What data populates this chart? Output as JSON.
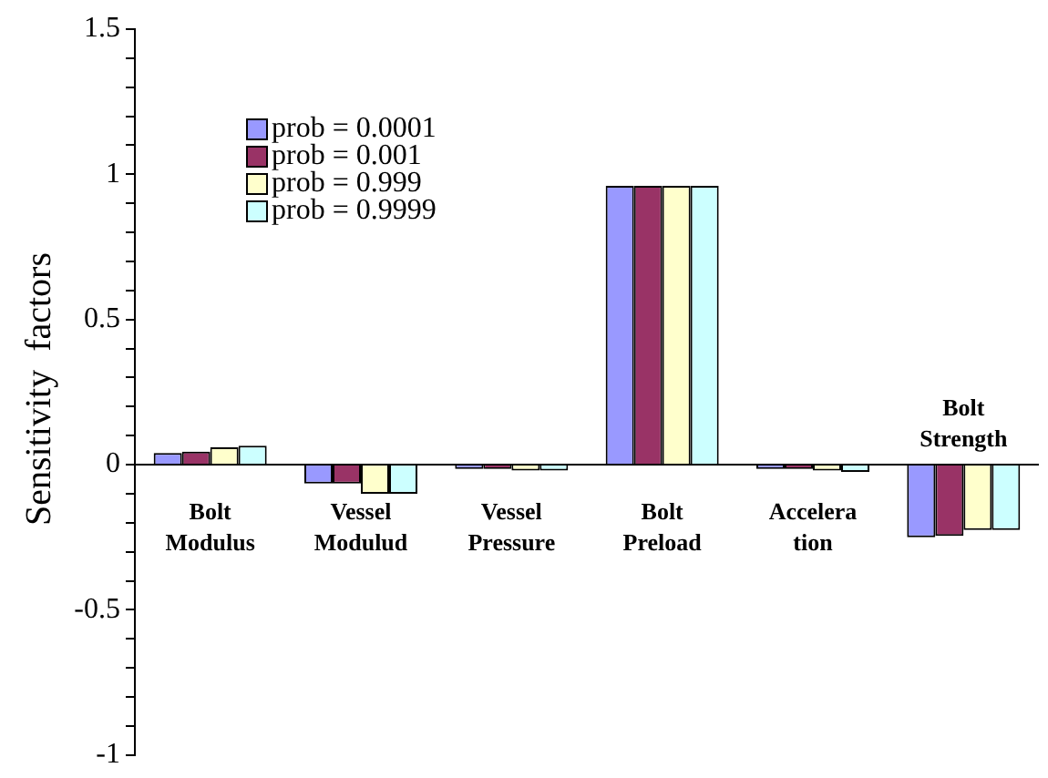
{
  "chart_data": {
    "type": "bar",
    "ylabel": "Sensitivity  factors",
    "categories": [
      "Bolt\nModulus",
      "Vessel\nModulud",
      "Vessel\nPressure",
      "Bolt\nPreload",
      "Accelera\ntion",
      "Bolt\nStrength"
    ],
    "series": [
      {
        "name": "prob = 0.0001",
        "color": "#9999ff",
        "values": [
          0.04,
          -0.065,
          -0.015,
          0.96,
          -0.015,
          -0.25
        ]
      },
      {
        "name": "prob = 0.001",
        "color": "#993366",
        "values": [
          0.045,
          -0.065,
          -0.015,
          0.96,
          -0.015,
          -0.245
        ]
      },
      {
        "name": "prob = 0.999",
        "color": "#ffffcc",
        "values": [
          0.06,
          -0.1,
          -0.02,
          0.96,
          -0.02,
          -0.225
        ]
      },
      {
        "name": "prob = 0.9999",
        "color": "#ccffff",
        "values": [
          0.065,
          -0.1,
          -0.02,
          0.96,
          -0.025,
          -0.225
        ]
      }
    ],
    "ylim": [
      -1,
      1.5
    ],
    "yticks": [
      -1,
      {
        "value": -0.9,
        "label": null
      },
      {
        "value": -0.8,
        "label": null
      },
      {
        "value": -0.7,
        "label": null
      },
      {
        "value": -0.6,
        "label": null
      },
      -0.5,
      {
        "value": -0.4,
        "label": null
      },
      {
        "value": -0.3,
        "label": null
      },
      {
        "value": -0.2,
        "label": null
      },
      {
        "value": -0.1,
        "label": null
      },
      0,
      {
        "value": 0.1,
        "label": null
      },
      {
        "value": 0.2,
        "label": null
      },
      {
        "value": 0.3,
        "label": null
      },
      {
        "value": 0.4,
        "label": null
      },
      0.5,
      {
        "value": 0.6,
        "label": null
      },
      {
        "value": 0.7,
        "label": null
      },
      {
        "value": 0.8,
        "label": null
      },
      {
        "value": 0.9,
        "label": null
      },
      1,
      {
        "value": 1.1,
        "label": null
      },
      {
        "value": 1.2,
        "label": null
      },
      {
        "value": 1.3,
        "label": null
      },
      {
        "value": 1.4,
        "label": null
      },
      1.5
    ],
    "grid": false,
    "legend": "top left"
  }
}
